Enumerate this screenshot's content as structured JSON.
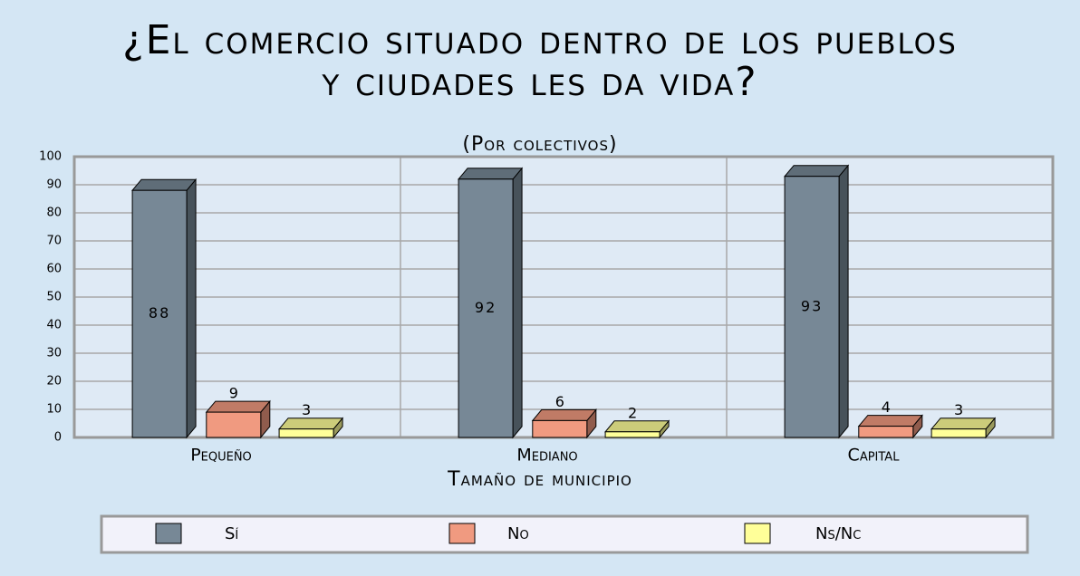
{
  "chart_data": {
    "type": "bar",
    "title": "¿El comercio situado dentro de los pueblos y ciudades les da vida?",
    "subtitle": "(Por colectivos)",
    "x_label": "Tamaño de municipio",
    "categories": [
      "Pequeño",
      "Mediano",
      "Capital"
    ],
    "series": [
      {
        "name": "Sí",
        "color": "#778896",
        "values": [
          88,
          92,
          93
        ]
      },
      {
        "name": "No",
        "color": "#f09a80",
        "values": [
          9,
          6,
          4
        ]
      },
      {
        "name": "Ns/Nc",
        "color": "#ffff99",
        "values": [
          3,
          2,
          3
        ]
      }
    ],
    "ylim": [
      0,
      100
    ],
    "yticks": [
      0,
      10,
      20,
      30,
      40,
      50,
      60,
      70,
      80,
      90,
      100
    ],
    "grid": true
  }
}
